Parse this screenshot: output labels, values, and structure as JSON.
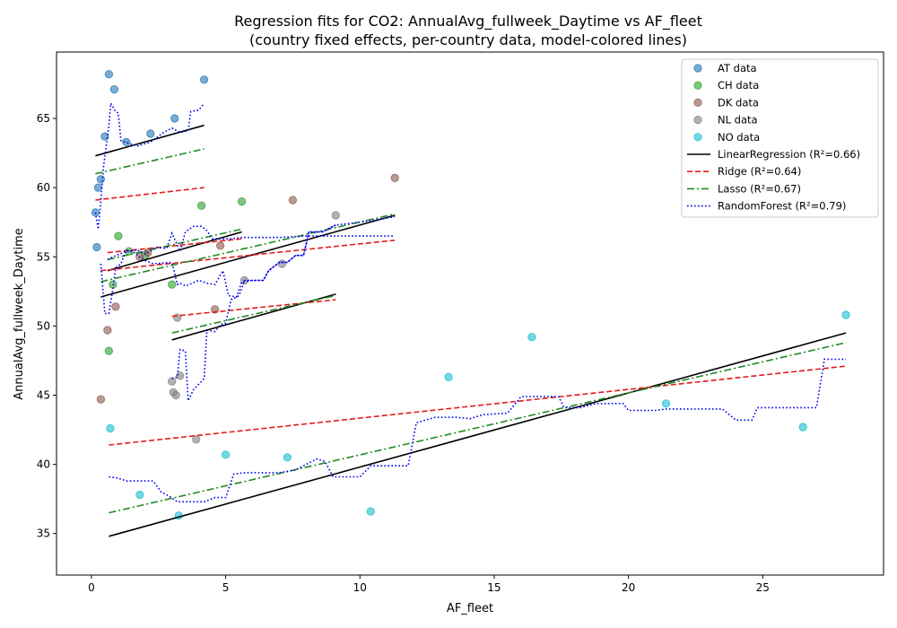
{
  "chart_data": {
    "type": "scatter",
    "title": "Regression fits for CO2: AnnualAvg_fullweek_Daytime vs AF_fleet",
    "subtitle": "(country fixed effects, per-country data, model-colored lines)",
    "xlabel": "AF_fleet",
    "ylabel": "AnnualAvg_fullweek_Daytime",
    "xlim": [
      -1.3,
      29.5
    ],
    "ylim": [
      32.0,
      69.8
    ],
    "xticks": [
      0,
      5,
      10,
      15,
      20,
      25
    ],
    "yticks": [
      35,
      40,
      45,
      50,
      55,
      60,
      65
    ],
    "grid": false,
    "legend_position": "top-right",
    "scatter_series": [
      {
        "name": "AT data",
        "color": "#1f77b4",
        "points": [
          [
            0.15,
            58.2
          ],
          [
            0.2,
            55.7
          ],
          [
            0.25,
            60.0
          ],
          [
            0.35,
            60.6
          ],
          [
            0.5,
            63.7
          ],
          [
            0.65,
            68.2
          ],
          [
            0.85,
            67.1
          ],
          [
            1.3,
            63.3
          ],
          [
            2.2,
            63.9
          ],
          [
            3.1,
            65.0
          ],
          [
            4.2,
            67.8
          ]
        ]
      },
      {
        "name": "CH data",
        "color": "#2ca02c",
        "points": [
          [
            0.65,
            48.2
          ],
          [
            0.8,
            53.0
          ],
          [
            1.0,
            56.5
          ],
          [
            1.4,
            55.4
          ],
          [
            2.0,
            55.1
          ],
          [
            3.0,
            53.0
          ],
          [
            4.1,
            58.7
          ],
          [
            5.6,
            59.0
          ]
        ]
      },
      {
        "name": "DK data",
        "color": "#8c564b",
        "points": [
          [
            0.35,
            44.7
          ],
          [
            0.6,
            49.7
          ],
          [
            0.9,
            51.4
          ],
          [
            1.8,
            55.0
          ],
          [
            2.1,
            55.3
          ],
          [
            4.6,
            51.2
          ],
          [
            4.8,
            55.8
          ],
          [
            7.5,
            59.1
          ],
          [
            11.3,
            60.7
          ]
        ]
      },
      {
        "name": "NL data",
        "color": "#7f7f7f",
        "points": [
          [
            3.0,
            46.0
          ],
          [
            3.05,
            45.2
          ],
          [
            3.15,
            45.0
          ],
          [
            3.2,
            50.6
          ],
          [
            3.3,
            46.4
          ],
          [
            3.9,
            41.8
          ],
          [
            5.7,
            53.3
          ],
          [
            7.1,
            54.5
          ],
          [
            9.1,
            58.0
          ]
        ]
      },
      {
        "name": "NO data",
        "color": "#17becf",
        "points": [
          [
            0.7,
            42.6
          ],
          [
            1.8,
            37.8
          ],
          [
            3.25,
            36.3
          ],
          [
            5.0,
            40.7
          ],
          [
            7.3,
            40.5
          ],
          [
            10.4,
            36.6
          ],
          [
            13.3,
            46.3
          ],
          [
            16.4,
            49.2
          ],
          [
            21.4,
            44.4
          ],
          [
            26.5,
            42.7
          ],
          [
            28.1,
            50.8
          ]
        ]
      }
    ],
    "fit_series": [
      {
        "name": "LinearRegression (R²=0.66)",
        "model": "linear",
        "color": "#000000",
        "dash": "solid",
        "segments": [
          [
            [
              0.15,
              62.3
            ],
            [
              4.2,
              64.5
            ]
          ],
          [
            [
              0.35,
              52.1
            ],
            [
              11.3,
              58.0
            ]
          ],
          [
            [
              0.6,
              54.0
            ],
            [
              5.6,
              56.8
            ]
          ],
          [
            [
              3.0,
              49.0
            ],
            [
              9.1,
              52.3
            ]
          ],
          [
            [
              0.65,
              34.8
            ],
            [
              28.1,
              49.5
            ]
          ]
        ]
      },
      {
        "name": "Ridge (R²=0.64)",
        "model": "ridge",
        "color": "#e41a1c",
        "dash": "dashed",
        "segments": [
          [
            [
              0.15,
              59.1
            ],
            [
              4.2,
              60.0
            ]
          ],
          [
            [
              0.35,
              54.0
            ],
            [
              11.3,
              56.2
            ]
          ],
          [
            [
              0.6,
              55.3
            ],
            [
              5.6,
              56.3
            ]
          ],
          [
            [
              3.0,
              50.7
            ],
            [
              9.1,
              51.9
            ]
          ],
          [
            [
              0.65,
              41.4
            ],
            [
              28.1,
              47.1
            ]
          ]
        ]
      },
      {
        "name": "Lasso (R²=0.67)",
        "model": "lasso",
        "color": "#228b22",
        "dash": "dashdot",
        "segments": [
          [
            [
              0.15,
              61.0
            ],
            [
              4.2,
              62.8
            ]
          ],
          [
            [
              0.35,
              53.2
            ],
            [
              11.3,
              58.1
            ]
          ],
          [
            [
              0.6,
              54.8
            ],
            [
              5.6,
              57.0
            ]
          ],
          [
            [
              3.0,
              49.5
            ],
            [
              9.1,
              52.2
            ]
          ],
          [
            [
              0.65,
              36.5
            ],
            [
              28.1,
              48.8
            ]
          ]
        ]
      },
      {
        "name": "RandomForest (R²=0.79)",
        "model": "randomforest",
        "color": "#0000ee",
        "dash": "dotted",
        "segments": [
          [
            [
              0.15,
              58.2
            ],
            [
              0.25,
              57.0
            ],
            [
              0.35,
              59.0
            ],
            [
              0.45,
              61.5
            ],
            [
              0.55,
              63.0
            ],
            [
              0.65,
              64.5
            ],
            [
              0.72,
              66.1
            ],
            [
              0.9,
              65.5
            ],
            [
              1.0,
              65.4
            ],
            [
              1.1,
              63.4
            ],
            [
              1.4,
              63.2
            ],
            [
              1.7,
              63.0
            ],
            [
              2.2,
              63.3
            ],
            [
              2.7,
              64.0
            ],
            [
              3.0,
              64.3
            ],
            [
              3.3,
              64.0
            ],
            [
              3.6,
              64.1
            ],
            [
              3.7,
              65.5
            ],
            [
              4.0,
              65.6
            ],
            [
              4.2,
              66.1
            ]
          ],
          [
            [
              0.35,
              54.5
            ],
            [
              0.5,
              50.9
            ],
            [
              0.65,
              50.9
            ],
            [
              0.8,
              52.7
            ],
            [
              0.9,
              54.2
            ],
            [
              1.1,
              54.5
            ],
            [
              1.3,
              55.5
            ],
            [
              1.6,
              55.3
            ],
            [
              1.9,
              54.8
            ],
            [
              2.3,
              54.5
            ],
            [
              3.0,
              54.6
            ],
            [
              3.2,
              53.0
            ],
            [
              3.3,
              53.1
            ],
            [
              3.5,
              52.9
            ],
            [
              4.0,
              53.3
            ],
            [
              4.3,
              53.1
            ],
            [
              4.6,
              53.0
            ],
            [
              4.9,
              54.0
            ],
            [
              5.1,
              52.2
            ],
            [
              5.4,
              52.1
            ],
            [
              5.6,
              53.2
            ],
            [
              6.0,
              53.3
            ],
            [
              6.4,
              53.3
            ],
            [
              6.6,
              54.0
            ],
            [
              7.0,
              54.6
            ],
            [
              7.3,
              54.6
            ],
            [
              7.6,
              55.1
            ],
            [
              7.9,
              55.1
            ],
            [
              8.1,
              56.8
            ],
            [
              8.6,
              56.8
            ],
            [
              9.1,
              57.3
            ],
            [
              10.0,
              57.5
            ],
            [
              11.3,
              57.9
            ]
          ],
          [
            [
              0.6,
              54.8
            ],
            [
              0.8,
              55.0
            ],
            [
              1.3,
              55.4
            ],
            [
              1.7,
              55.5
            ],
            [
              2.0,
              55.2
            ],
            [
              2.4,
              55.7
            ],
            [
              2.8,
              55.6
            ],
            [
              3.0,
              56.7
            ],
            [
              3.3,
              55.4
            ],
            [
              3.5,
              56.8
            ],
            [
              3.8,
              57.2
            ],
            [
              4.1,
              57.2
            ],
            [
              4.3,
              56.9
            ],
            [
              4.5,
              56.3
            ],
            [
              4.8,
              56.3
            ],
            [
              5.2,
              56.3
            ],
            [
              5.6,
              56.4
            ],
            [
              6.0,
              56.4
            ],
            [
              7.0,
              56.4
            ],
            [
              8.0,
              56.5
            ],
            [
              9.0,
              56.5
            ],
            [
              10.0,
              56.5
            ],
            [
              11.3,
              56.5
            ]
          ],
          [
            [
              3.0,
              46.2
            ],
            [
              3.2,
              46.3
            ],
            [
              3.3,
              48.3
            ],
            [
              3.5,
              48.2
            ],
            [
              3.6,
              44.6
            ],
            [
              3.8,
              45.4
            ],
            [
              4.0,
              45.8
            ],
            [
              4.2,
              46.2
            ],
            [
              4.3,
              49.7
            ],
            [
              4.6,
              49.6
            ],
            [
              4.8,
              50.1
            ],
            [
              5.0,
              50.2
            ],
            [
              5.2,
              51.9
            ],
            [
              5.5,
              52.2
            ],
            [
              5.7,
              53.3
            ],
            [
              6.0,
              53.3
            ],
            [
              6.4,
              53.3
            ],
            [
              6.6,
              54.0
            ],
            [
              7.0,
              54.6
            ],
            [
              7.3,
              54.6
            ],
            [
              7.6,
              55.1
            ],
            [
              7.9,
              55.1
            ],
            [
              8.1,
              56.8
            ],
            [
              8.6,
              56.8
            ],
            [
              9.1,
              57.3
            ]
          ],
          [
            [
              0.65,
              39.1
            ],
            [
              1.0,
              39.0
            ],
            [
              1.3,
              38.8
            ],
            [
              2.3,
              38.8
            ],
            [
              2.6,
              38.0
            ],
            [
              2.9,
              37.7
            ],
            [
              3.2,
              37.3
            ],
            [
              3.6,
              37.3
            ],
            [
              4.2,
              37.3
            ],
            [
              4.6,
              37.6
            ],
            [
              5.0,
              37.6
            ],
            [
              5.3,
              39.3
            ],
            [
              5.7,
              39.4
            ],
            [
              7.0,
              39.4
            ],
            [
              7.6,
              39.6
            ],
            [
              8.4,
              40.4
            ],
            [
              8.7,
              40.2
            ],
            [
              9.0,
              39.1
            ],
            [
              10.0,
              39.1
            ],
            [
              10.4,
              39.9
            ],
            [
              11.8,
              39.9
            ],
            [
              12.1,
              43.0
            ],
            [
              12.8,
              43.4
            ],
            [
              13.6,
              43.4
            ],
            [
              14.1,
              43.3
            ],
            [
              14.6,
              43.6
            ],
            [
              15.5,
              43.7
            ],
            [
              16.0,
              44.9
            ],
            [
              17.4,
              44.9
            ],
            [
              17.6,
              44.1
            ],
            [
              18.2,
              44.1
            ],
            [
              18.8,
              44.4
            ],
            [
              19.8,
              44.4
            ],
            [
              20.0,
              43.9
            ],
            [
              21.0,
              43.9
            ],
            [
              21.4,
              44.0
            ],
            [
              23.5,
              44.0
            ],
            [
              24.0,
              43.2
            ],
            [
              24.6,
              43.2
            ],
            [
              24.8,
              44.1
            ],
            [
              27.0,
              44.1
            ],
            [
              27.3,
              47.6
            ],
            [
              28.1,
              47.6
            ]
          ]
        ]
      }
    ]
  }
}
